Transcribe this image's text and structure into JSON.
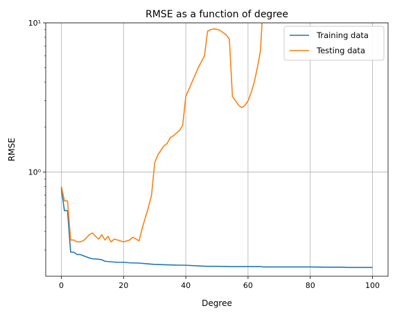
{
  "chart_data": {
    "type": "line",
    "title": "RMSE as a function of degree",
    "xlabel": "Degree",
    "ylabel": "RMSE",
    "xlim": [
      -5,
      105
    ],
    "ylim": [
      0.2,
      10
    ],
    "yscale": "log",
    "grid": true,
    "legend_position": "top-right",
    "x_ticks": [
      0,
      20,
      40,
      60,
      80,
      100
    ],
    "x_tick_labels": [
      "0",
      "20",
      "40",
      "60",
      "80",
      "100"
    ],
    "y_ticks": [
      1,
      10
    ],
    "y_tick_labels": [
      "10⁰",
      "10¹"
    ],
    "series": [
      {
        "name": "Training data",
        "color": "#1f77b4",
        "x": [
          0,
          1,
          2,
          3,
          4,
          5,
          6,
          7,
          8,
          9,
          10,
          12,
          13,
          14,
          16,
          18,
          20,
          22,
          25,
          27,
          30,
          35,
          40,
          45,
          47,
          50,
          55,
          60,
          64,
          65,
          70,
          75,
          80,
          85,
          90,
          92,
          95,
          100
        ],
        "y": [
          0.78,
          0.55,
          0.55,
          0.29,
          0.29,
          0.28,
          0.28,
          0.275,
          0.27,
          0.265,
          0.262,
          0.26,
          0.258,
          0.252,
          0.25,
          0.248,
          0.248,
          0.246,
          0.245,
          0.243,
          0.24,
          0.238,
          0.237,
          0.234,
          0.233,
          0.233,
          0.232,
          0.232,
          0.232,
          0.231,
          0.231,
          0.231,
          0.231,
          0.23,
          0.23,
          0.229,
          0.229,
          0.229
        ]
      },
      {
        "name": "Testing data",
        "color": "#ff7f0e",
        "x": [
          0,
          1,
          2,
          3,
          4,
          5,
          6,
          7,
          8,
          9,
          10,
          11,
          12,
          13,
          14,
          15,
          16,
          17,
          18,
          19,
          20,
          21,
          22,
          23,
          24,
          25,
          26,
          28,
          29,
          30,
          31,
          33,
          34,
          35,
          36,
          38,
          39,
          40,
          42,
          44,
          46,
          47,
          48,
          49,
          50,
          51,
          52,
          53,
          54,
          55,
          56,
          57,
          58,
          59,
          60,
          61,
          62,
          63,
          64,
          64.5
        ],
        "y": [
          0.8,
          0.64,
          0.64,
          0.35,
          0.35,
          0.34,
          0.34,
          0.345,
          0.36,
          0.38,
          0.39,
          0.37,
          0.355,
          0.38,
          0.35,
          0.37,
          0.34,
          0.355,
          0.35,
          0.345,
          0.34,
          0.345,
          0.35,
          0.365,
          0.355,
          0.345,
          0.42,
          0.58,
          0.7,
          1.15,
          1.3,
          1.5,
          1.55,
          1.7,
          1.75,
          1.9,
          2.05,
          3.2,
          4.0,
          5.0,
          6.0,
          8.8,
          9.0,
          9.1,
          9.05,
          8.9,
          8.6,
          8.3,
          7.8,
          3.2,
          3.0,
          2.8,
          2.7,
          2.8,
          3.0,
          3.4,
          4.0,
          5.0,
          6.5,
          10.0
        ]
      }
    ]
  }
}
